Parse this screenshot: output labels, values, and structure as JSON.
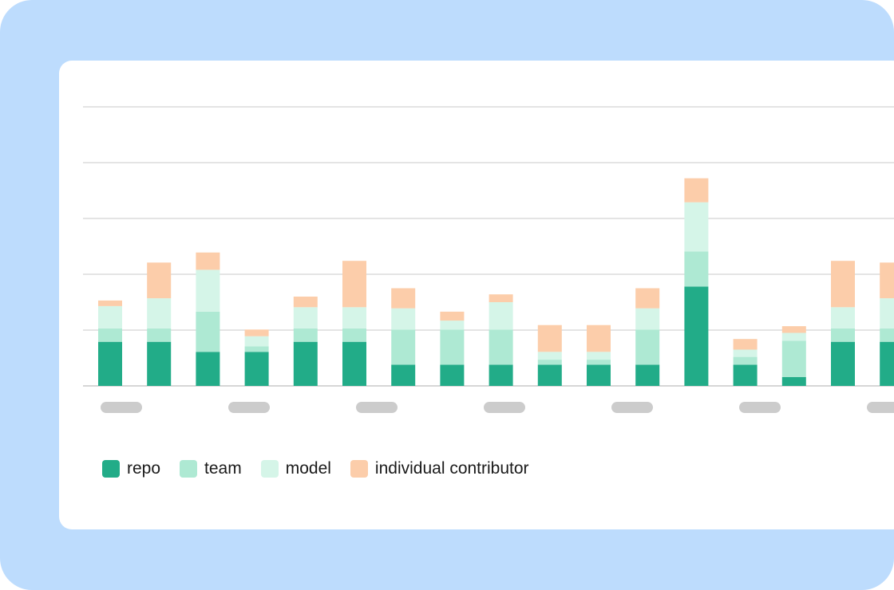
{
  "chart_data": {
    "type": "bar",
    "stacked": true,
    "grid": true,
    "legend_position": "bottom-left",
    "ylim": [
      0,
      50
    ],
    "yticks": [
      0,
      10,
      20,
      30,
      40,
      50
    ],
    "title": "",
    "xlabel": "",
    "ylabel": "",
    "categories": [
      "",
      "",
      "",
      "",
      "",
      "",
      "",
      "",
      "",
      "",
      "",
      "",
      "",
      "",
      "",
      "",
      ""
    ],
    "series": [
      {
        "name": "repo",
        "color": "#22ac88",
        "values": [
          7.9,
          7.9,
          6.1,
          6.1,
          7.9,
          7.9,
          3.8,
          3.8,
          3.8,
          3.8,
          3.8,
          3.8,
          17.8,
          3.8,
          1.6,
          7.9,
          7.9
        ]
      },
      {
        "name": "team",
        "color": "#aee9d3",
        "values": [
          2.4,
          2.4,
          7.2,
          1.0,
          2.4,
          2.4,
          6.3,
          6.3,
          6.3,
          0.9,
          0.9,
          6.3,
          6.3,
          1.4,
          6.5,
          2.4,
          2.4
        ]
      },
      {
        "name": "model",
        "color": "#d5f5e8",
        "values": [
          4.0,
          5.4,
          7.5,
          1.8,
          3.8,
          3.8,
          3.8,
          1.6,
          4.9,
          1.4,
          1.4,
          3.8,
          8.8,
          1.3,
          1.4,
          3.8,
          5.4
        ]
      },
      {
        "name": "individual contributor",
        "color": "#fccdaa",
        "values": [
          1.0,
          6.4,
          3.1,
          1.2,
          1.9,
          8.3,
          3.6,
          1.6,
          1.4,
          4.8,
          4.8,
          3.6,
          4.3,
          1.9,
          1.2,
          8.3,
          6.4
        ]
      }
    ]
  },
  "colors": {
    "frame_bg": "#bddcfd",
    "card_bg": "#ffffff",
    "gridline": "#c8c8c8",
    "tick_placeholder": "#cccccc",
    "legend_text": "#1a1a1a"
  }
}
